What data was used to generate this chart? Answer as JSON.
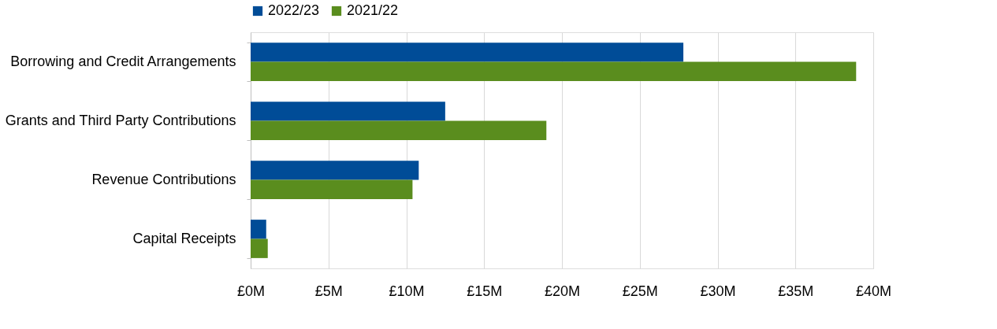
{
  "chart_data": {
    "type": "bar",
    "orientation": "horizontal",
    "categories": [
      "Borrowing and Credit Arrangements",
      "Grants and Third Party Contributions",
      "Revenue Contributions",
      "Capital Receipts"
    ],
    "series": [
      {
        "name": "2022/23",
        "color": "#004c97",
        "values": [
          27.8,
          12.5,
          10.8,
          1.0
        ]
      },
      {
        "name": "2021/22",
        "color": "#5a8d1e",
        "values": [
          38.9,
          19.0,
          10.4,
          1.1
        ]
      }
    ],
    "xlim": [
      0,
      40
    ],
    "xticks": [
      {
        "value": 0,
        "label": "£0M"
      },
      {
        "value": 5,
        "label": "£5M"
      },
      {
        "value": 10,
        "label": "£10M"
      },
      {
        "value": 15,
        "label": "£15M"
      },
      {
        "value": 20,
        "label": "£20M"
      },
      {
        "value": 25,
        "label": "£25M"
      },
      {
        "value": 30,
        "label": "£30M"
      },
      {
        "value": 35,
        "label": "£35M"
      },
      {
        "value": 40,
        "label": "£40M"
      }
    ],
    "grid": "x",
    "legend": "top"
  }
}
